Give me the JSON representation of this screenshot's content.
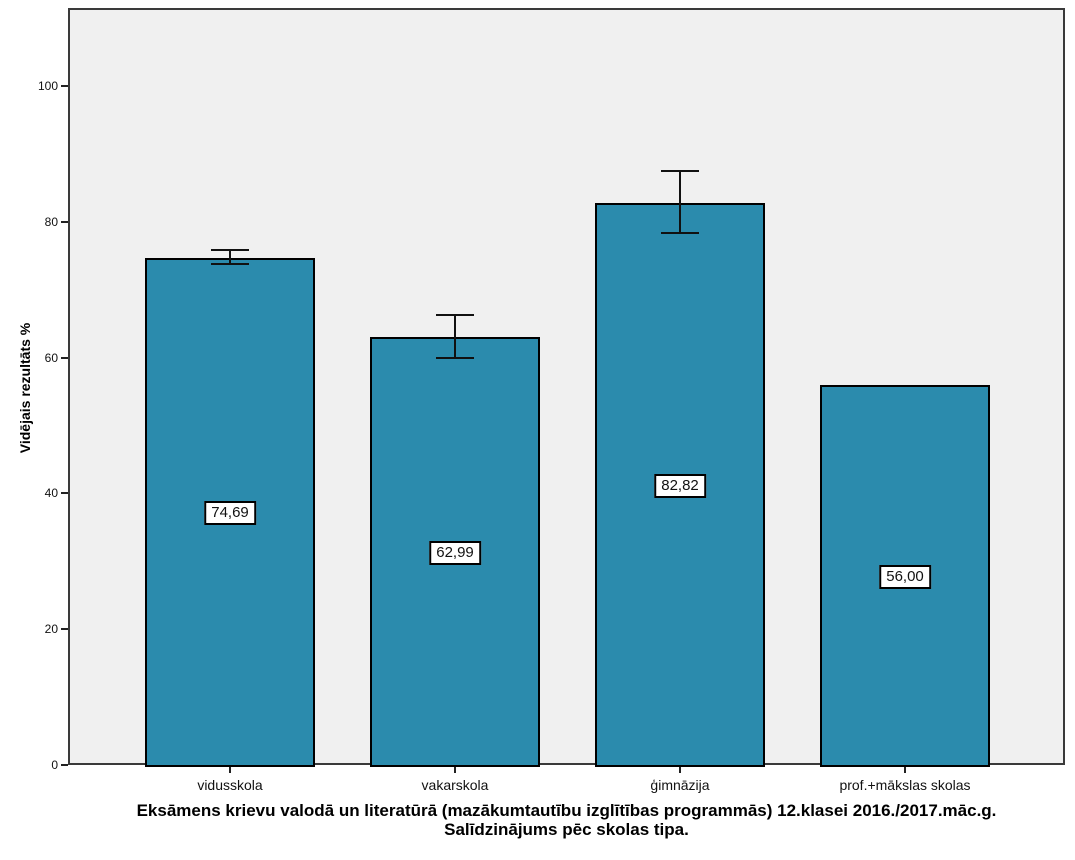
{
  "figure": {
    "y_axis_label": "Vidējais rezultāts %",
    "caption_line1": "Eksāmens krievu valodā un literatūrā (mazākumtautību izglītības programmās) 12.klasei 2016./2017.māc.g.",
    "caption_line2": "Salīdzinājums pēc skolas tipa."
  },
  "chart_data": {
    "type": "bar",
    "title": "Eksāmens krievu valodā un literatūrā (mazākumtautību izglītības programmās) 12.klasei 2016./2017.māc.g. Salīdzinājums pēc skolas tipa.",
    "xlabel": "",
    "ylabel": "Vidējais rezultāts %",
    "categories": [
      "vidusskola",
      "vakarskola",
      "ģimnāzija",
      "prof.+mākslas skolas"
    ],
    "values": [
      74.69,
      62.99,
      82.82,
      56.0
    ],
    "value_labels": [
      "74,69",
      "62,99",
      "82,82",
      "56,00"
    ],
    "error_bars": [
      {
        "lower": 73.8,
        "upper": 75.9
      },
      {
        "lower": 59.9,
        "upper": 66.3
      },
      {
        "lower": 78.4,
        "upper": 87.5
      },
      null
    ],
    "ylim": [
      0,
      111.5
    ],
    "yticks": [
      0,
      20,
      40,
      60,
      80,
      100
    ],
    "grid": false,
    "legend": "none",
    "bar_color": "#2b8bad",
    "bar_border_color": "#000000",
    "plot_background": "#f0f0f0",
    "frame_color": "#3a3a3a"
  }
}
